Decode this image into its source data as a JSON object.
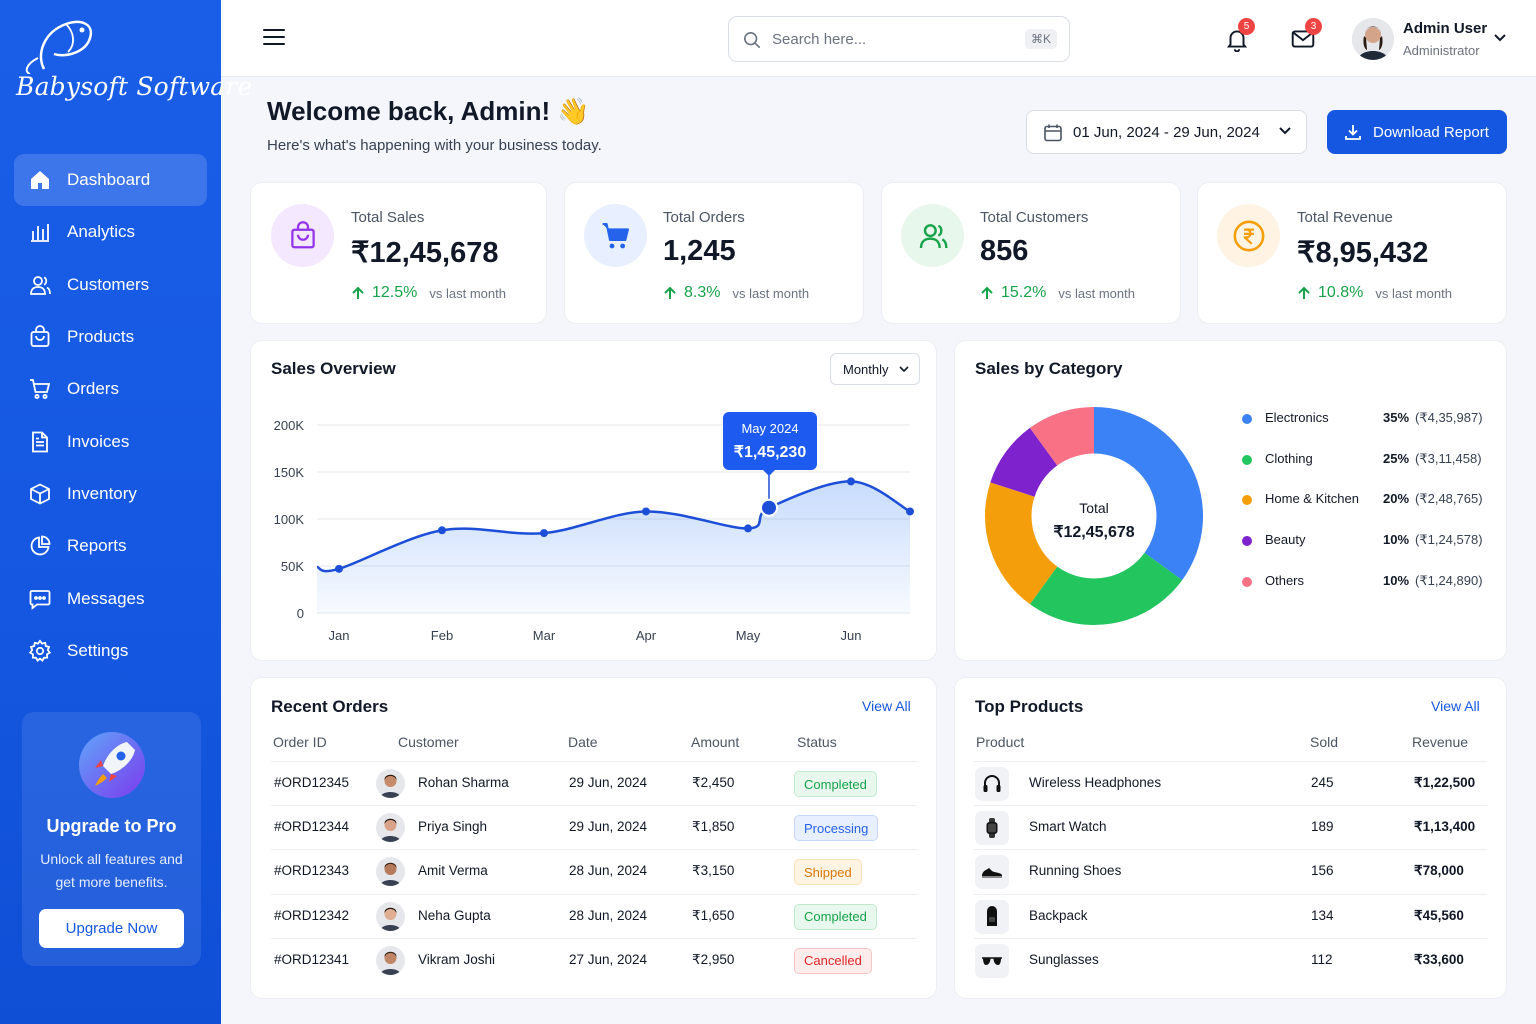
{
  "brand": {
    "name": "Babysoft Software"
  },
  "sidebar": {
    "items": [
      {
        "label": "Dashboard",
        "icon": "home-icon",
        "active": true
      },
      {
        "label": "Analytics",
        "icon": "bar-chart-icon"
      },
      {
        "label": "Customers",
        "icon": "users-icon"
      },
      {
        "label": "Products",
        "icon": "shopping-bag-icon"
      },
      {
        "label": "Orders",
        "icon": "cart-icon"
      },
      {
        "label": "Invoices",
        "icon": "document-icon"
      },
      {
        "label": "Inventory",
        "icon": "box-icon"
      },
      {
        "label": "Reports",
        "icon": "pie-chart-icon"
      },
      {
        "label": "Messages",
        "icon": "chat-icon"
      },
      {
        "label": "Settings",
        "icon": "gear-icon"
      }
    ],
    "upgrade": {
      "title": "Upgrade to Pro",
      "desc": "Unlock all features and get more benefits.",
      "button": "Upgrade Now"
    }
  },
  "topbar": {
    "search_placeholder": "Search here...",
    "shortcut": "⌘K",
    "notifications_count": "5",
    "messages_count": "3",
    "user_name": "Admin User",
    "user_role": "Administrator"
  },
  "header": {
    "welcome": "Welcome back, Admin! 👋",
    "subtitle": "Here's what's happening with your business today.",
    "date_range": "01 Jun, 2024 - 29 Jun, 2024",
    "download_label": "Download Report"
  },
  "kpis": [
    {
      "label": "Total Sales",
      "value": "₹12,45,678",
      "change": "12.5%",
      "vs": "vs last month",
      "icon": "shopping-bag-icon",
      "color": "#9333ea"
    },
    {
      "label": "Total Orders",
      "value": "1,245",
      "change": "8.3%",
      "vs": "vs last month",
      "icon": "cart-icon",
      "color": "#2563eb"
    },
    {
      "label": "Total Customers",
      "value": "856",
      "change": "15.2%",
      "vs": "vs last month",
      "icon": "users-icon",
      "color": "#16a34a"
    },
    {
      "label": "Total Revenue",
      "value": "₹8,95,432",
      "change": "10.8%",
      "vs": "vs last month",
      "icon": "rupee-icon",
      "color": "#f59e0b"
    }
  ],
  "sales_overview": {
    "title": "Sales Overview",
    "period": "Monthly",
    "tooltip_label": "May 2024",
    "tooltip_value": "₹1,45,230"
  },
  "chart_data": [
    {
      "type": "area",
      "title": "Sales Overview",
      "x_labels": [
        "Jan",
        "Feb",
        "Mar",
        "Apr",
        "May",
        "Jun"
      ],
      "y_ticks": [
        "200K",
        "150K",
        "100K",
        "50K",
        "0"
      ],
      "ylim": [
        0,
        200000
      ],
      "points": [
        {
          "x": "Jan",
          "y": 47000
        },
        {
          "x": "Feb",
          "y": 88000
        },
        {
          "x": "Mar",
          "y": 85000
        },
        {
          "x": "Apr",
          "y": 108000
        },
        {
          "x": "May",
          "y": 90000
        },
        {
          "x": "May",
          "y": 112000
        },
        {
          "x": "Jun",
          "y": 140000
        },
        {
          "x": "Jun",
          "y": 108000
        }
      ],
      "highlight": {
        "label": "May 2024",
        "value": 145230
      },
      "grid": true,
      "color": "#1d4ed8"
    },
    {
      "type": "pie",
      "title": "Sales by Category",
      "center_label": "Total",
      "center_value": "₹12,45,678",
      "slices": [
        {
          "name": "Electronics",
          "percent": 35,
          "pct_label": "35%",
          "amount": "(₹4,35,987)",
          "color": "#3b82f6"
        },
        {
          "name": "Clothing",
          "percent": 25,
          "pct_label": "25%",
          "amount": "(₹3,11,458)",
          "color": "#22c55e"
        },
        {
          "name": "Home & Kitchen",
          "percent": 20,
          "pct_label": "20%",
          "amount": "(₹2,48,765)",
          "color": "#f59e0b"
        },
        {
          "name": "Beauty",
          "percent": 10,
          "pct_label": "10%",
          "amount": "(₹1,24,578)",
          "color": "#7e22ce"
        },
        {
          "name": "Others",
          "percent": 10,
          "pct_label": "10%",
          "amount": "(₹1,24,890)",
          "color": "#f87185"
        }
      ]
    }
  ],
  "recent_orders": {
    "title": "Recent Orders",
    "view_all": "View All",
    "columns": [
      "Order ID",
      "Customer",
      "Date",
      "Amount",
      "Status"
    ],
    "rows": [
      {
        "id": "#ORD12345",
        "customer": "Rohan Sharma",
        "date": "29 Jun, 2024",
        "amount": "₹2,450",
        "status": "Completed"
      },
      {
        "id": "#ORD12344",
        "customer": "Priya Singh",
        "date": "29 Jun, 2024",
        "amount": "₹1,850",
        "status": "Processing"
      },
      {
        "id": "#ORD12343",
        "customer": "Amit Verma",
        "date": "28 Jun, 2024",
        "amount": "₹3,150",
        "status": "Shipped"
      },
      {
        "id": "#ORD12342",
        "customer": "Neha Gupta",
        "date": "28 Jun, 2024",
        "amount": "₹1,650",
        "status": "Completed"
      },
      {
        "id": "#ORD12341",
        "customer": "Vikram Joshi",
        "date": "27 Jun, 2024",
        "amount": "₹2,950",
        "status": "Cancelled"
      }
    ]
  },
  "top_products": {
    "title": "Top Products",
    "view_all": "View All",
    "columns": [
      "Product",
      "Sold",
      "Revenue"
    ],
    "rows": [
      {
        "name": "Wireless Headphones",
        "sold": "245",
        "revenue": "₹1,22,500",
        "icon": "headphones-icon"
      },
      {
        "name": "Smart Watch",
        "sold": "189",
        "revenue": "₹1,13,400",
        "icon": "watch-icon"
      },
      {
        "name": "Running Shoes",
        "sold": "156",
        "revenue": "₹78,000",
        "icon": "shoe-icon"
      },
      {
        "name": "Backpack",
        "sold": "134",
        "revenue": "₹45,560",
        "icon": "backpack-icon"
      },
      {
        "name": "Sunglasses",
        "sold": "112",
        "revenue": "₹33,600",
        "icon": "sunglasses-icon"
      }
    ]
  }
}
